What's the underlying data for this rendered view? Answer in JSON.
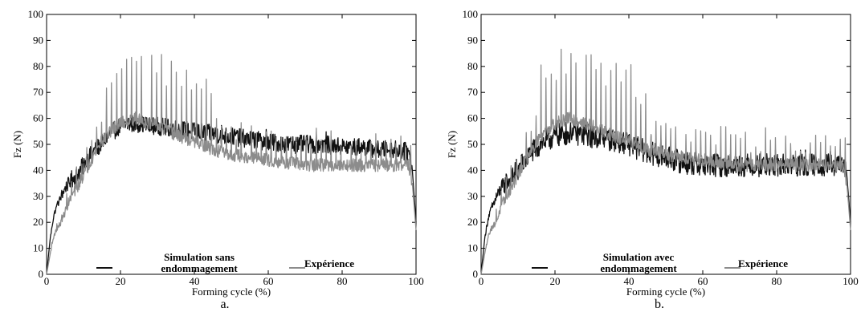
{
  "chart_data": [
    {
      "type": "line",
      "panel_label": "a.",
      "xlabel": "Forming cycle (%)",
      "ylabel": "Fz (N)",
      "xlim": [
        0,
        100
      ],
      "ylim": [
        0,
        100
      ],
      "xticks": [
        "0",
        "20",
        "40",
        "60",
        "80",
        "100"
      ],
      "yticks": [
        "0",
        "10",
        "20",
        "30",
        "40",
        "50",
        "60",
        "70",
        "80",
        "90",
        "100"
      ],
      "grid": false,
      "legend_placement": "bottom",
      "series": [
        {
          "name": "Simulation sans endommagement",
          "color": "#111111",
          "x": [
            0,
            1,
            2,
            3,
            4,
            5,
            6,
            8,
            10,
            12,
            14,
            16,
            18,
            20,
            22,
            25,
            28,
            30,
            35,
            40,
            45,
            50,
            55,
            60,
            65,
            70,
            75,
            80,
            85,
            90,
            95,
            98,
            99,
            100
          ],
          "values": [
            0,
            14,
            23,
            27,
            30,
            33,
            35,
            38,
            42,
            46,
            49,
            52,
            55,
            57,
            58,
            58,
            57,
            57,
            56,
            55,
            54,
            53,
            52,
            51,
            50,
            50,
            50,
            49,
            49,
            48,
            48,
            47,
            40,
            20
          ],
          "spikes": [
            2,
            3
          ],
          "noise_amplitude": 3.5
        },
        {
          "name": "Expérience",
          "color": "#8c8c8c",
          "x": [
            0,
            1,
            2,
            3,
            4,
            5,
            6,
            8,
            10,
            12,
            14,
            16,
            18,
            20,
            22,
            24,
            26,
            28,
            30,
            33,
            36,
            40,
            45,
            50,
            55,
            60,
            65,
            70,
            75,
            80,
            85,
            90,
            95,
            98,
            99,
            100
          ],
          "values": [
            0,
            8,
            15,
            18,
            20,
            24,
            28,
            33,
            38,
            44,
            49,
            53,
            56,
            58,
            59,
            60,
            59,
            58,
            57,
            55,
            53,
            51,
            48,
            46,
            45,
            44,
            43,
            42,
            42,
            42,
            42,
            42,
            42,
            42,
            35,
            17
          ],
          "spikes": [
            6,
            28
          ],
          "noise_amplitude": 2.5
        }
      ],
      "legend": [
        {
          "label_lines": [
            "Simulation sans",
            "endommagement"
          ],
          "color": "#111111"
        },
        {
          "label_lines": [
            "Expérience"
          ],
          "color": "#8c8c8c"
        }
      ]
    },
    {
      "type": "line",
      "panel_label": "b.",
      "xlabel": "Forming cycle (%)",
      "ylabel": "Fz (N)",
      "xlim": [
        0,
        100
      ],
      "ylim": [
        0,
        100
      ],
      "xticks": [
        "0",
        "20",
        "40",
        "60",
        "80",
        "100"
      ],
      "yticks": [
        "0",
        "10",
        "20",
        "30",
        "40",
        "50",
        "60",
        "70",
        "80",
        "90",
        "100"
      ],
      "grid": false,
      "legend_placement": "bottom",
      "series": [
        {
          "name": "Simulation avec endommagement",
          "color": "#111111",
          "x": [
            0,
            1,
            2,
            3,
            4,
            5,
            6,
            8,
            10,
            12,
            14,
            16,
            18,
            20,
            22,
            25,
            28,
            30,
            35,
            40,
            45,
            50,
            55,
            60,
            65,
            70,
            75,
            80,
            85,
            90,
            95,
            98,
            99,
            100
          ],
          "values": [
            0,
            14,
            22,
            26,
            29,
            32,
            34,
            37,
            40,
            44,
            47,
            50,
            52,
            53,
            54,
            54,
            54,
            53,
            52,
            50,
            47,
            45,
            43,
            42,
            42,
            42,
            42,
            42,
            42,
            42,
            42,
            42,
            38,
            20
          ],
          "spikes": [
            2,
            4
          ],
          "noise_amplitude": 4.5
        },
        {
          "name": "Expérience",
          "color": "#8c8c8c",
          "x": [
            0,
            1,
            2,
            3,
            4,
            5,
            6,
            8,
            10,
            12,
            14,
            16,
            18,
            20,
            22,
            24,
            26,
            28,
            30,
            33,
            36,
            40,
            45,
            50,
            55,
            60,
            65,
            70,
            75,
            80,
            85,
            90,
            95,
            98,
            99,
            100
          ],
          "values": [
            0,
            8,
            15,
            18,
            20,
            24,
            28,
            33,
            38,
            44,
            49,
            53,
            56,
            58,
            59,
            60,
            59,
            58,
            57,
            55,
            53,
            51,
            48,
            46,
            45,
            44,
            43,
            42,
            42,
            42,
            42,
            42,
            42,
            42,
            35,
            17
          ],
          "spikes": [
            6,
            28
          ],
          "noise_amplitude": 2.5
        }
      ],
      "legend": [
        {
          "label_lines": [
            "Simulation avec",
            "endommagement"
          ],
          "color": "#111111"
        },
        {
          "label_lines": [
            "Expérience"
          ],
          "color": "#8c8c8c"
        }
      ]
    }
  ]
}
